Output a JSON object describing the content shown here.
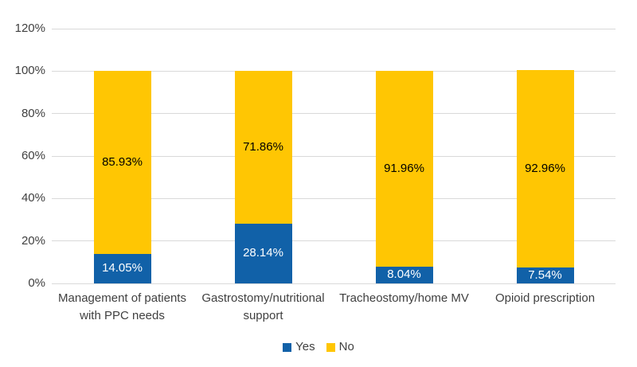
{
  "chart_data": {
    "type": "bar",
    "variant": "stacked-column",
    "title": "",
    "categories": [
      "Management of patients\nwith PPC needs",
      "Gastrostomy/nutritional\nsupport",
      "Tracheostomy/home MV",
      "Opioid prescription"
    ],
    "series": [
      {
        "name": "Yes",
        "color": "#1161A8",
        "label_color": "#ffffff",
        "values": [
          14.05,
          28.14,
          8.04,
          7.54
        ],
        "labels": [
          "14.05%",
          "28.14%",
          "8.04%",
          "7.54%"
        ]
      },
      {
        "name": "No",
        "color": "#FFC603",
        "label_color": "#000000",
        "values": [
          85.93,
          71.86,
          91.96,
          92.96
        ],
        "labels": [
          "85.93%",
          "71.86%",
          "91.96%",
          "92.96%"
        ]
      }
    ],
    "y_axis": {
      "min": 0,
      "max": 120,
      "step": 20,
      "ticks": [
        "0%",
        "20%",
        "40%",
        "60%",
        "80%",
        "100%",
        "120%"
      ]
    },
    "grid": true,
    "legend_position": "bottom",
    "legend": [
      {
        "label": "Yes",
        "color": "#1161A8"
      },
      {
        "label": "No",
        "color": "#FFC603"
      }
    ]
  },
  "colors": {
    "background": "#ffffff",
    "gridline": "#d9d9d9",
    "axis_text": "#404040",
    "yes_blue": "#1161A8",
    "no_yellow": "#FFC603"
  }
}
